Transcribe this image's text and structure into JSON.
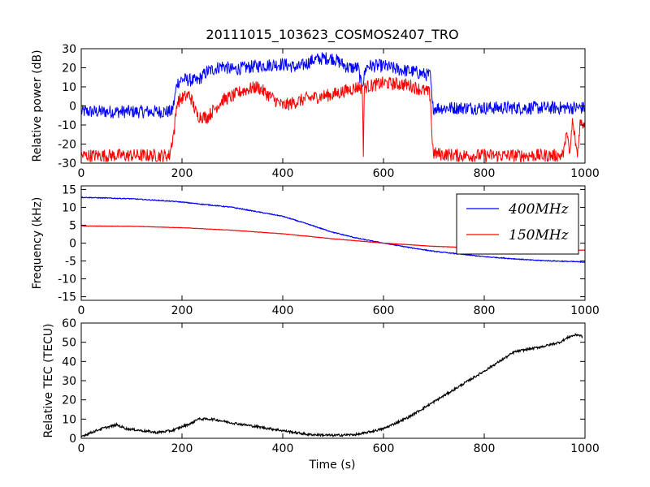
{
  "figure": {
    "title": "20111015_103623_COSMOS2407_TRO",
    "xlabel": "Time (s)"
  },
  "chart_data": [
    {
      "type": "line",
      "ylabel": "Relative power (dB)",
      "xlim": [
        0,
        1000
      ],
      "ylim": [
        -30,
        30
      ],
      "xticks": [
        0,
        200,
        400,
        600,
        800,
        1000
      ],
      "yticks": [
        -30,
        -20,
        -10,
        0,
        10,
        20,
        30
      ],
      "legend": "none",
      "grid": false,
      "series": [
        {
          "name": "",
          "color": "#0000ff",
          "noise": 3.5,
          "x": [
            0,
            180,
            185,
            190,
            200,
            230,
            250,
            280,
            300,
            350,
            400,
            430,
            460,
            480,
            500,
            530,
            550,
            555,
            560,
            565,
            570,
            600,
            630,
            660,
            690,
            693,
            697,
            700,
            750,
            800,
            900,
            1000
          ],
          "y": [
            -3,
            -3,
            3,
            12,
            14,
            13,
            18,
            21,
            19,
            21,
            22,
            20,
            24,
            25,
            25,
            20,
            20,
            12,
            13,
            20,
            21,
            21,
            19,
            18,
            16,
            16,
            0,
            -1,
            -1,
            -1,
            -1,
            -1
          ]
        },
        {
          "name": "",
          "color": "#ff0000",
          "noise": 3.5,
          "x": [
            0,
            175,
            180,
            185,
            190,
            200,
            215,
            230,
            250,
            280,
            300,
            320,
            350,
            380,
            400,
            450,
            500,
            550,
            558,
            560,
            562,
            565,
            600,
            650,
            690,
            693,
            697,
            700,
            750,
            800,
            900,
            955,
            960,
            962,
            970,
            975,
            985,
            990,
            1000
          ],
          "y": [
            -26,
            -26,
            -19,
            -12,
            2,
            4,
            6,
            -5,
            -6,
            3,
            5,
            8,
            10,
            4,
            0,
            4,
            6,
            10,
            9,
            -25,
            9,
            10,
            12,
            11,
            7,
            5,
            -20,
            -25,
            -26,
            -26,
            -26,
            -26,
            -22,
            -12,
            -26,
            -8,
            -26,
            -9,
            -9
          ]
        }
      ]
    },
    {
      "type": "line",
      "ylabel": "Frequency (kHz)",
      "xlim": [
        0,
        1000
      ],
      "ylim": [
        -16,
        16
      ],
      "xticks": [
        0,
        200,
        400,
        600,
        800,
        1000
      ],
      "yticks": [
        -15,
        -10,
        -5,
        0,
        5,
        10,
        15
      ],
      "legend": "top-right",
      "grid": false,
      "series": [
        {
          "name": "400MHz",
          "color": "#0000ff",
          "noise": 0.12,
          "x": [
            0,
            100,
            190,
            300,
            400,
            450,
            500,
            550,
            600,
            650,
            700,
            800,
            900,
            1000
          ],
          "y": [
            12.8,
            12.4,
            11.6,
            10.0,
            7.5,
            5.3,
            3.0,
            1.3,
            0.0,
            -1.2,
            -2.3,
            -3.8,
            -4.8,
            -5.3
          ]
        },
        {
          "name": "150MHz",
          "color": "#ff0000",
          "noise": 0.05,
          "x": [
            0,
            100,
            200,
            300,
            400,
            500,
            600,
            700,
            800,
            900,
            1000
          ],
          "y": [
            4.8,
            4.7,
            4.3,
            3.6,
            2.6,
            1.2,
            0.0,
            -0.9,
            -1.4,
            -1.8,
            -2.0
          ]
        }
      ]
    },
    {
      "type": "line",
      "ylabel": "Relative TEC (TECU)",
      "xlim": [
        0,
        1000
      ],
      "ylim": [
        0,
        60
      ],
      "xticks": [
        0,
        200,
        400,
        600,
        800,
        1000
      ],
      "yticks": [
        0,
        10,
        20,
        30,
        40,
        50,
        60
      ],
      "legend": "none",
      "grid": false,
      "series": [
        {
          "name": "",
          "color": "#000000",
          "noise": 0.6,
          "x": [
            0,
            20,
            40,
            70,
            90,
            120,
            150,
            180,
            200,
            220,
            230,
            260,
            300,
            350,
            400,
            450,
            500,
            550,
            600,
            650,
            700,
            750,
            800,
            830,
            860,
            880,
            920,
            950,
            970,
            985,
            995
          ],
          "y": [
            1,
            3,
            5,
            7,
            5,
            4,
            3,
            4,
            6,
            8,
            10,
            10,
            8,
            6,
            4,
            2,
            1.5,
            2,
            5,
            11,
            19,
            27,
            35,
            40,
            45,
            46,
            48,
            50,
            53,
            54,
            53
          ]
        }
      ]
    }
  ]
}
